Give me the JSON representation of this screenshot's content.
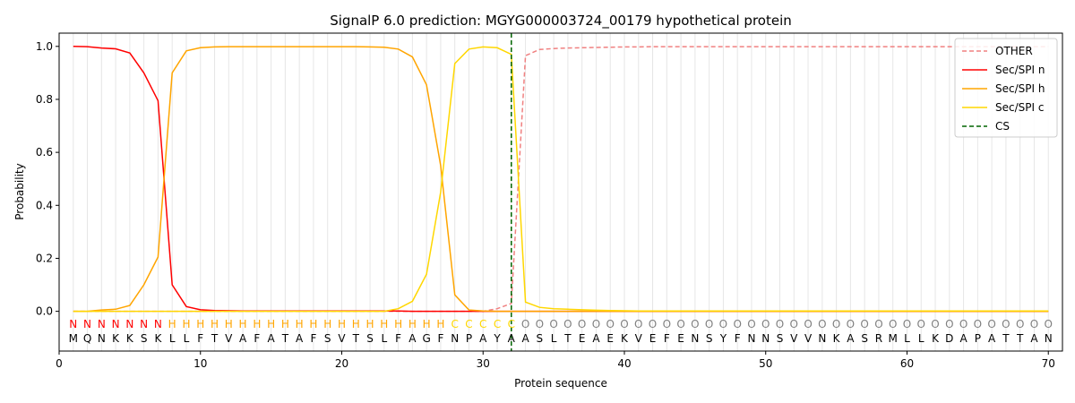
{
  "chart_data": {
    "type": "line",
    "title": "SignalP 6.0 prediction: MGYG000003724_00179 hypothetical protein",
    "xlabel": "Protein sequence",
    "ylabel": "Probability",
    "xlim": [
      0,
      71
    ],
    "ylim": [
      -0.15,
      1.05
    ],
    "x_ticks": [
      "0",
      "10",
      "20",
      "30",
      "40",
      "50",
      "60",
      "70"
    ],
    "y_ticks": [
      "0.0",
      "0.2",
      "0.4",
      "0.6",
      "0.8",
      "1.0"
    ],
    "grid": "vertical lines at each residue",
    "legend_position": "top-right",
    "sequence": "MQNKKSKLLFTVAFATAFSVTSLFAGFNPAYAASLTEAEKVEFENSYFNNSVVNKASRMLLKDAPATTAN",
    "region_labels": "NNNNNNNHHHHHHHHHHHHHHHHHHHHCCCCCOOOOOOOOOOOOOOOOOOOOOOOOOOOOOOOOOOOOOO",
    "region_colors": {
      "N": "#ff0000",
      "H": "#ffa500",
      "C": "#ffd700",
      "O": "#808080"
    },
    "cleavage_site": 32,
    "series": [
      {
        "name": "OTHER",
        "color": "#f08080",
        "dash": true,
        "values": [
          0,
          0,
          0,
          0,
          0,
          0,
          0,
          0,
          0,
          0,
          0,
          0,
          0,
          0,
          0,
          0,
          0,
          0,
          0,
          0,
          0,
          0,
          0,
          0,
          0,
          0,
          0,
          0,
          0,
          0,
          0.01,
          0.03,
          0.965,
          0.988,
          0.992,
          0.994,
          0.995,
          0.996,
          0.997,
          0.998,
          0.998,
          0.999,
          0.999,
          0.999,
          0.999,
          0.999,
          0.999,
          0.999,
          0.999,
          0.999,
          0.999,
          0.999,
          0.999,
          0.999,
          0.999,
          0.999,
          0.999,
          0.999,
          0.999,
          0.999,
          0.999,
          0.999,
          0.999,
          0.999,
          0.999,
          0.999,
          0.999,
          0.999,
          0.999,
          0.999
        ]
      },
      {
        "name": "Sec/SPI n",
        "color": "#ff0000",
        "dash": false,
        "values": [
          1.0,
          0.999,
          0.994,
          0.991,
          0.975,
          0.9,
          0.795,
          0.1,
          0.018,
          0.006,
          0.003,
          0.002,
          0.001,
          0.001,
          0.001,
          0.001,
          0.001,
          0.001,
          0.001,
          0.001,
          0.001,
          0.001,
          0.001,
          0.001,
          0,
          0,
          0,
          0,
          0,
          0,
          0,
          0,
          0,
          0,
          0,
          0,
          0,
          0,
          0,
          0,
          0,
          0,
          0,
          0,
          0,
          0,
          0,
          0,
          0,
          0,
          0,
          0,
          0,
          0,
          0,
          0,
          0,
          0,
          0,
          0,
          0,
          0,
          0,
          0,
          0,
          0,
          0,
          0,
          0,
          0
        ]
      },
      {
        "name": "Sec/SPI h",
        "color": "#ffa500",
        "dash": false,
        "values": [
          0,
          0,
          0.005,
          0.008,
          0.022,
          0.1,
          0.205,
          0.9,
          0.983,
          0.995,
          0.998,
          0.999,
          0.999,
          0.999,
          0.999,
          0.999,
          0.999,
          0.999,
          0.999,
          0.999,
          0.999,
          0.998,
          0.997,
          0.99,
          0.96,
          0.855,
          0.55,
          0.062,
          0.005,
          0.001,
          0,
          0,
          0,
          0,
          0,
          0,
          0,
          0,
          0,
          0,
          0,
          0,
          0,
          0,
          0,
          0,
          0,
          0,
          0,
          0,
          0,
          0,
          0,
          0,
          0,
          0,
          0,
          0,
          0,
          0,
          0,
          0,
          0,
          0,
          0,
          0,
          0,
          0,
          0,
          0
        ]
      },
      {
        "name": "Sec/SPI c",
        "color": "#ffd700",
        "dash": false,
        "values": [
          0,
          0,
          0,
          0,
          0,
          0,
          0,
          0,
          0,
          0,
          0,
          0,
          0,
          0,
          0,
          0,
          0,
          0,
          0,
          0,
          0,
          0,
          0,
          0.01,
          0.038,
          0.14,
          0.45,
          0.935,
          0.99,
          0.998,
          0.995,
          0.97,
          0.035,
          0.015,
          0.01,
          0.008,
          0.006,
          0.004,
          0.003,
          0.002,
          0.001,
          0.001,
          0.001,
          0.001,
          0.001,
          0.001,
          0.001,
          0.001,
          0.001,
          0.001,
          0.001,
          0.001,
          0.001,
          0.001,
          0.001,
          0.001,
          0.001,
          0.001,
          0.001,
          0.001,
          0.001,
          0.001,
          0.001,
          0.001,
          0.001,
          0.001,
          0.001,
          0.001,
          0.001,
          0.001
        ]
      }
    ],
    "legend": [
      {
        "label": "OTHER",
        "color": "#f08080",
        "style": "dashed"
      },
      {
        "label": "Sec/SPI n",
        "color": "#ff0000",
        "style": "solid"
      },
      {
        "label": "Sec/SPI h",
        "color": "#ffa500",
        "style": "solid"
      },
      {
        "label": "Sec/SPI c",
        "color": "#ffd700",
        "style": "solid"
      },
      {
        "label": "CS",
        "color": "#006400",
        "style": "dashed"
      }
    ]
  }
}
